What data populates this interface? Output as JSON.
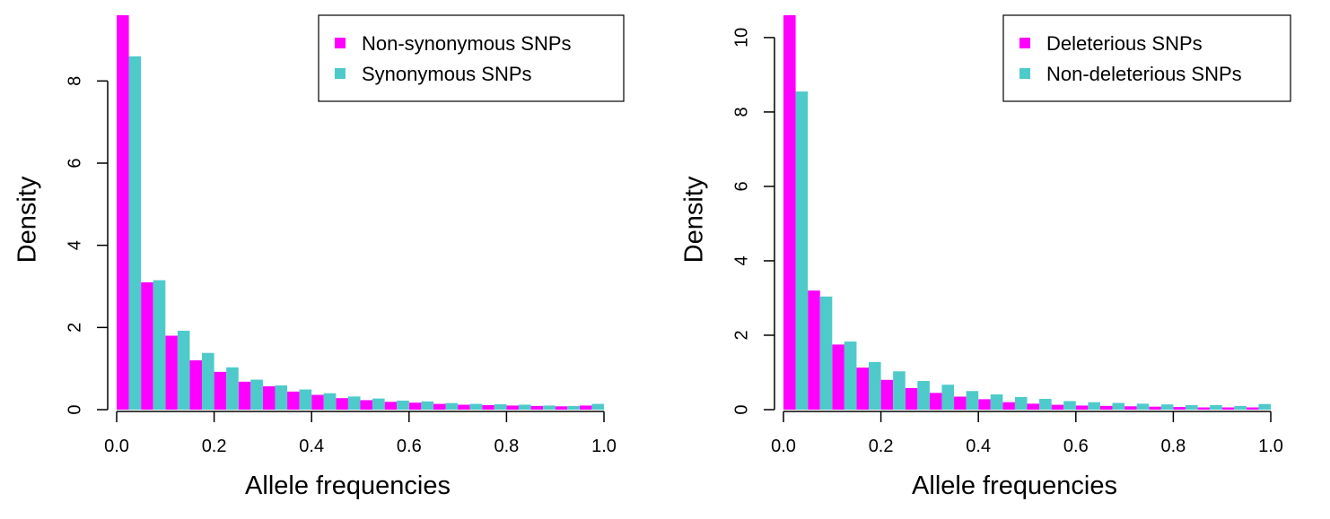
{
  "chart_data": [
    {
      "type": "bar",
      "title": "",
      "xlabel": "Allele frequencies",
      "ylabel": "Density",
      "xlim": [
        0,
        1
      ],
      "ylim": [
        0,
        9.6
      ],
      "x_ticks": [
        "0.0",
        "0.2",
        "0.4",
        "0.6",
        "0.8",
        "1.0"
      ],
      "y_ticks": [
        "0",
        "2",
        "4",
        "6",
        "8"
      ],
      "bin_width": 0.05,
      "legend_position": "top-right",
      "series": [
        {
          "name": "Non-synonymous SNPs",
          "color": "#ff00ff",
          "values": [
            9.6,
            3.1,
            1.8,
            1.2,
            0.92,
            0.68,
            0.57,
            0.44,
            0.36,
            0.28,
            0.23,
            0.19,
            0.17,
            0.14,
            0.12,
            0.11,
            0.1,
            0.09,
            0.08,
            0.1
          ]
        },
        {
          "name": "Synonymous SNPs",
          "color": "#4ecaca",
          "values": [
            8.6,
            3.15,
            1.92,
            1.38,
            1.03,
            0.73,
            0.59,
            0.49,
            0.4,
            0.32,
            0.27,
            0.22,
            0.2,
            0.16,
            0.14,
            0.13,
            0.12,
            0.1,
            0.09,
            0.14
          ]
        }
      ]
    },
    {
      "type": "bar",
      "title": "",
      "xlabel": "Allele frequencies",
      "ylabel": "Density",
      "xlim": [
        0,
        1
      ],
      "ylim": [
        0,
        10.6
      ],
      "x_ticks": [
        "0.0",
        "0.2",
        "0.4",
        "0.6",
        "0.8",
        "1.0"
      ],
      "y_ticks": [
        "0",
        "2",
        "4",
        "6",
        "8",
        "10"
      ],
      "bin_width": 0.05,
      "legend_position": "top-right",
      "series": [
        {
          "name": "Deleterious SNPs",
          "color": "#ff00ff",
          "values": [
            10.6,
            3.2,
            1.75,
            1.13,
            0.8,
            0.58,
            0.45,
            0.35,
            0.28,
            0.2,
            0.16,
            0.13,
            0.11,
            0.1,
            0.09,
            0.08,
            0.07,
            0.06,
            0.06,
            0.06
          ]
        },
        {
          "name": "Non-deleterious SNPs",
          "color": "#4ecaca",
          "values": [
            8.55,
            3.04,
            1.83,
            1.28,
            1.03,
            0.77,
            0.67,
            0.5,
            0.41,
            0.34,
            0.29,
            0.23,
            0.2,
            0.18,
            0.16,
            0.14,
            0.12,
            0.12,
            0.1,
            0.15
          ]
        }
      ]
    }
  ]
}
